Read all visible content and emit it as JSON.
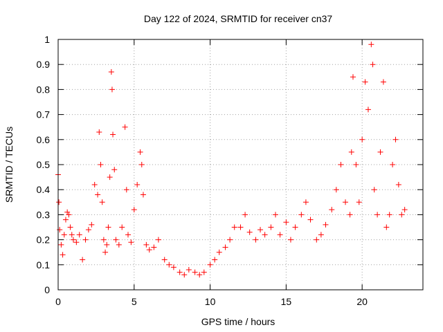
{
  "chart_data": {
    "type": "scatter",
    "title": "Day 122 of 2024, SRMTID for receiver cn37",
    "xlabel": "GPS time / hours",
    "ylabel": "SRMTID / TECUs",
    "xlim": [
      0,
      24
    ],
    "ylim": [
      0,
      1
    ],
    "xticks": [
      0,
      5,
      10,
      15,
      20
    ],
    "xtick_labels": [
      "0",
      "5",
      "10",
      "15",
      "20"
    ],
    "yticks": [
      0,
      0.1,
      0.2,
      0.3,
      0.4,
      0.5,
      0.6,
      0.7,
      0.8,
      0.9,
      1
    ],
    "ytick_labels": [
      "0",
      "0.1",
      "0.2",
      "0.3",
      "0.4",
      "0.5",
      "0.6",
      "0.7",
      "0.8",
      "0.9",
      "1"
    ],
    "grid": true,
    "marker": "+",
    "color": "#ff0000",
    "series": [
      {
        "name": "SRMTID",
        "x": [
          0.0,
          0.05,
          0.1,
          0.2,
          0.3,
          0.4,
          0.5,
          0.6,
          0.7,
          0.8,
          0.9,
          1.0,
          1.2,
          1.4,
          1.6,
          1.8,
          2.0,
          2.2,
          2.4,
          2.6,
          2.7,
          2.8,
          2.9,
          3.0,
          3.1,
          3.2,
          3.3,
          3.4,
          3.5,
          3.55,
          3.6,
          3.7,
          3.8,
          4.0,
          4.2,
          4.4,
          4.5,
          4.6,
          4.8,
          5.0,
          5.2,
          5.4,
          5.5,
          5.6,
          5.8,
          6.0,
          6.3,
          6.6,
          7.0,
          7.3,
          7.6,
          8.0,
          8.3,
          8.6,
          9.0,
          9.3,
          9.6,
          10.0,
          10.3,
          10.6,
          11.0,
          11.3,
          11.6,
          12.0,
          12.3,
          12.6,
          13.0,
          13.3,
          13.6,
          14.0,
          14.3,
          14.6,
          15.0,
          15.3,
          15.6,
          16.0,
          16.3,
          16.6,
          17.0,
          17.3,
          17.6,
          18.0,
          18.3,
          18.6,
          18.9,
          19.2,
          19.3,
          19.4,
          19.6,
          19.8,
          20.0,
          20.2,
          20.4,
          20.6,
          20.7,
          20.8,
          21.0,
          21.2,
          21.4,
          21.6,
          21.8,
          22.0,
          22.2,
          22.4,
          22.6,
          22.8
        ],
        "y": [
          0.46,
          0.35,
          0.24,
          0.18,
          0.14,
          0.22,
          0.28,
          0.31,
          0.3,
          0.25,
          0.22,
          0.2,
          0.19,
          0.22,
          0.12,
          0.2,
          0.24,
          0.26,
          0.42,
          0.38,
          0.63,
          0.5,
          0.35,
          0.2,
          0.15,
          0.18,
          0.25,
          0.45,
          0.87,
          0.8,
          0.62,
          0.48,
          0.2,
          0.18,
          0.25,
          0.65,
          0.4,
          0.22,
          0.19,
          0.32,
          0.42,
          0.55,
          0.5,
          0.38,
          0.18,
          0.16,
          0.17,
          0.2,
          0.12,
          0.1,
          0.09,
          0.07,
          0.06,
          0.08,
          0.07,
          0.06,
          0.07,
          0.1,
          0.12,
          0.15,
          0.17,
          0.2,
          0.25,
          0.25,
          0.3,
          0.23,
          0.2,
          0.24,
          0.22,
          0.25,
          0.3,
          0.22,
          0.27,
          0.2,
          0.25,
          0.3,
          0.35,
          0.28,
          0.2,
          0.22,
          0.26,
          0.32,
          0.4,
          0.5,
          0.35,
          0.3,
          0.55,
          0.85,
          0.5,
          0.35,
          0.6,
          0.83,
          0.72,
          0.98,
          0.9,
          0.4,
          0.3,
          0.55,
          0.83,
          0.25,
          0.3,
          0.5,
          0.6,
          0.42,
          0.3,
          0.32
        ]
      }
    ]
  }
}
